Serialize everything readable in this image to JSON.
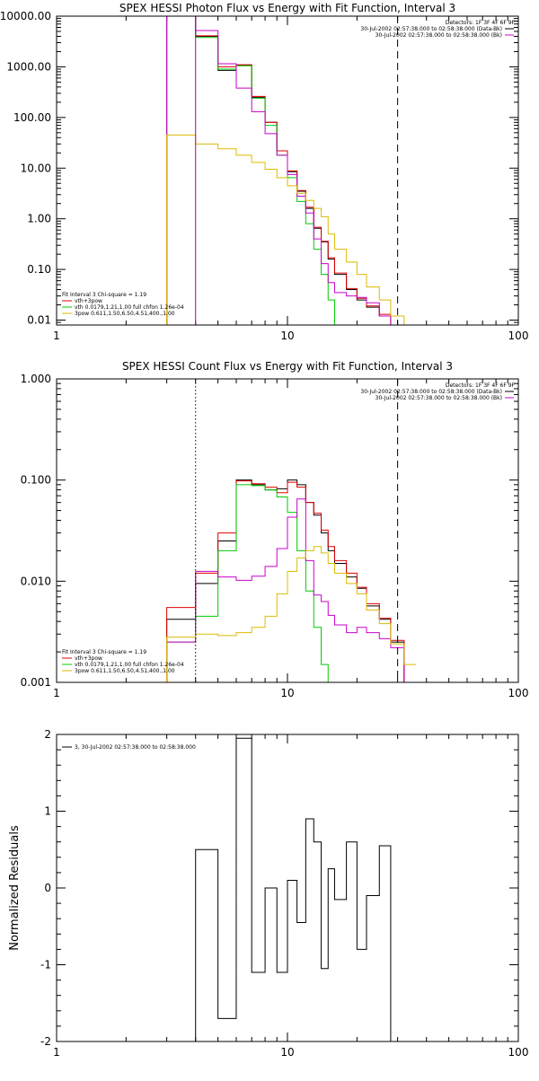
{
  "chart_data": [
    {
      "type": "line",
      "title": "SPEX HESSI Photon Flux vs Energy with Fit Function, Interval 3",
      "xlabel": "",
      "ylabel": "",
      "xscale": "log",
      "yscale": "log",
      "xlim": [
        1,
        100
      ],
      "ylim": [
        0.008,
        10000
      ],
      "x_tick_labels": [
        "1",
        "10",
        "100"
      ],
      "y_ticks": [
        0.01,
        0.1,
        1,
        10,
        100,
        1000,
        10000
      ],
      "y_tick_labels": [
        "0.01",
        "0.10",
        "1.00",
        "10.00",
        "100.00",
        "1000.00",
        "10000.00"
      ],
      "energy_edges": [
        3,
        4,
        5,
        6,
        7,
        8,
        9,
        10,
        11,
        12,
        13,
        14,
        15,
        16,
        18,
        20,
        22,
        25,
        28,
        32,
        36
      ],
      "vlines": [
        {
          "x": 4.0,
          "style": "solid",
          "color": "#aa00aa"
        },
        {
          "x": 30.0,
          "style": "dashed",
          "color": "#000000"
        }
      ],
      "legend_right": [
        {
          "text": "Detectors: 1F 3F 4F 6F 9F",
          "color": "",
          "swatch": false
        },
        {
          "text": "30-Jul-2002 02:57:38.000 to 02:58:38.000 (Data-Bk)",
          "color": "#000000",
          "swatch": true
        },
        {
          "text": "30-Jul-2002 02:57:38.000 to 02:58:38.000 (Bk)",
          "color": "#cc00cc",
          "swatch": true
        }
      ],
      "legend_left": [
        {
          "text": "Fit Interval 3   Chi-square = 1.19",
          "color": "",
          "swatch": false
        },
        {
          "text": "vth+3pow",
          "color": "#dd0000",
          "swatch": true
        },
        {
          "text": "vth 0.0179,1.21,1.00  full chfon 1.26e-04",
          "color": "#00cc00",
          "swatch": true
        },
        {
          "text": "3pow 0.611,1.50,6.50,4.51,400.,1.00",
          "color": "#ddbb00",
          "swatch": true
        }
      ],
      "series": [
        {
          "color": "#000000",
          "values": [
            10000,
            4000,
            850,
            1080,
            250,
            80,
            22,
            8.5,
            3.5,
            1.6,
            0.65,
            0.35,
            0.16,
            0.08,
            0.04,
            0.025,
            0.018,
            0.012,
            0.008,
            0.008
          ]
        },
        {
          "color": "#dd0000",
          "values": [
            10000,
            4100,
            1000,
            1100,
            260,
            80,
            22,
            8.8,
            3.6,
            1.7,
            0.68,
            0.36,
            0.17,
            0.085,
            0.042,
            0.027,
            0.019,
            0.013,
            0.008,
            0.008
          ]
        },
        {
          "color": "#00cc00",
          "values": [
            10000,
            3800,
            900,
            1050,
            240,
            70,
            18,
            6.5,
            2.2,
            0.8,
            0.25,
            0.08,
            0.025,
            0.008,
            0.008,
            0.008,
            0.008,
            0.008,
            0.008,
            0.008
          ]
        },
        {
          "color": "#cc00cc",
          "values": [
            10000,
            5200,
            1150,
            380,
            130,
            48,
            18,
            7.5,
            2.8,
            1.3,
            0.4,
            0.13,
            0.055,
            0.035,
            0.03,
            0.028,
            0.022,
            0.012,
            0.008,
            0.008
          ]
        },
        {
          "color": "#ddbb00",
          "values": [
            45,
            30,
            24,
            18,
            13,
            9.5,
            6.5,
            4.5,
            3.2,
            2.3,
            1.6,
            1.1,
            0.5,
            0.25,
            0.14,
            0.08,
            0.045,
            0.025,
            0.012,
            0.008
          ]
        }
      ]
    },
    {
      "type": "line",
      "title": "SPEX HESSI Count Flux vs Energy with Fit Function, Interval 3",
      "xlabel": "",
      "ylabel": "",
      "xscale": "log",
      "yscale": "log",
      "xlim": [
        1,
        100
      ],
      "ylim": [
        0.001,
        1.0
      ],
      "x_tick_labels": [
        "1",
        "10",
        "100"
      ],
      "y_ticks": [
        0.001,
        0.01,
        0.1,
        1.0
      ],
      "y_tick_labels": [
        "0.001",
        "0.010",
        "0.100",
        "1.000"
      ],
      "energy_edges": [
        3,
        4,
        5,
        6,
        7,
        8,
        9,
        10,
        11,
        12,
        13,
        14,
        15,
        16,
        18,
        20,
        22,
        25,
        28,
        32,
        36
      ],
      "vlines": [
        {
          "x": 4.0,
          "style": "dotted",
          "color": "#000000"
        },
        {
          "x": 30.0,
          "style": "dashed",
          "color": "#000000"
        }
      ],
      "legend_right": [
        {
          "text": "Detectors: 1F 3F 4F 6F 9F",
          "color": "",
          "swatch": false
        },
        {
          "text": "30-Jul-2002 02:57:38.000 to 02:58:38.000 (Data-Bk)",
          "color": "#000000",
          "swatch": true
        },
        {
          "text": "30-Jul-2002 02:57:38.000 to 02:58:38.000 (Bk)",
          "color": "#cc00cc",
          "swatch": true
        }
      ],
      "legend_left": [
        {
          "text": "Fit Interval 3   Chi-square = 1.19",
          "color": "",
          "swatch": false
        },
        {
          "text": "vth+3pow",
          "color": "#dd0000",
          "swatch": true
        },
        {
          "text": "vth 0.0179,1.21,1.00  full chfon 1.26e-04",
          "color": "#00cc00",
          "swatch": true
        },
        {
          "text": "3pow 0.611,1.50,6.50,4.51,400.,1.00",
          "color": "#ddbb00",
          "swatch": true
        }
      ],
      "series": [
        {
          "color": "#000000",
          "values": [
            0.0042,
            0.0095,
            0.025,
            0.1,
            0.09,
            0.08,
            0.082,
            0.1,
            0.09,
            0.06,
            0.045,
            0.03,
            0.02,
            0.015,
            0.011,
            0.0085,
            0.0057,
            0.0042,
            0.0025,
            0.001
          ]
        },
        {
          "color": "#dd0000",
          "values": [
            0.0055,
            0.012,
            0.03,
            0.098,
            0.092,
            0.085,
            0.075,
            0.095,
            0.085,
            0.06,
            0.047,
            0.032,
            0.022,
            0.016,
            0.012,
            0.0087,
            0.006,
            0.0043,
            0.0026,
            0.001
          ]
        },
        {
          "color": "#00cc00",
          "values": [
            0.0025,
            0.0045,
            0.02,
            0.09,
            0.088,
            0.08,
            0.068,
            0.048,
            0.02,
            0.008,
            0.0035,
            0.0015,
            0.001,
            0.001,
            0.001,
            0.001,
            0.001,
            0.001,
            0.001,
            0.001
          ]
        },
        {
          "color": "#cc00cc",
          "values": [
            0.0025,
            0.0125,
            0.011,
            0.0102,
            0.0112,
            0.014,
            0.021,
            0.043,
            0.065,
            0.016,
            0.0073,
            0.0063,
            0.0046,
            0.0037,
            0.0031,
            0.0035,
            0.0031,
            0.0027,
            0.0022,
            0.001
          ]
        },
        {
          "color": "#ddbb00",
          "values": [
            0.0028,
            0.003,
            0.0029,
            0.0031,
            0.0035,
            0.0045,
            0.0075,
            0.0125,
            0.017,
            0.02,
            0.022,
            0.019,
            0.015,
            0.012,
            0.0095,
            0.0075,
            0.0052,
            0.0038,
            0.0024,
            0.0015
          ]
        }
      ]
    },
    {
      "type": "line",
      "title": "",
      "xlabel": "",
      "ylabel": "Normalized Residuals",
      "xscale": "log",
      "yscale": "linear",
      "xlim": [
        1,
        100
      ],
      "ylim": [
        -2,
        2
      ],
      "x_tick_labels": [
        "1",
        "10",
        "100"
      ],
      "y_ticks": [
        -2,
        -1,
        0,
        1,
        2
      ],
      "y_tick_labels": [
        "-2",
        "-1",
        "0",
        "1",
        "2"
      ],
      "energy_edges": [
        4,
        5,
        6,
        7,
        8,
        9,
        10,
        11,
        12,
        13,
        14,
        15,
        16,
        18,
        20,
        22,
        25,
        28,
        32
      ],
      "vlines": [],
      "legend_left": [
        {
          "text": "3, 30-Jul-2002 02:57:38.000 to 02:58:38.000",
          "color": "#000000",
          "swatch": true
        }
      ],
      "legend_right": [],
      "series": [
        {
          "color": "#000000",
          "values": [
            0.5,
            -1.7,
            1.95,
            -1.1,
            0.0,
            -1.1,
            0.1,
            -0.45,
            0.9,
            0.6,
            -1.05,
            0.25,
            -0.15,
            0.6,
            -0.8,
            -0.1,
            0.55,
            -2.0
          ]
        }
      ]
    }
  ]
}
